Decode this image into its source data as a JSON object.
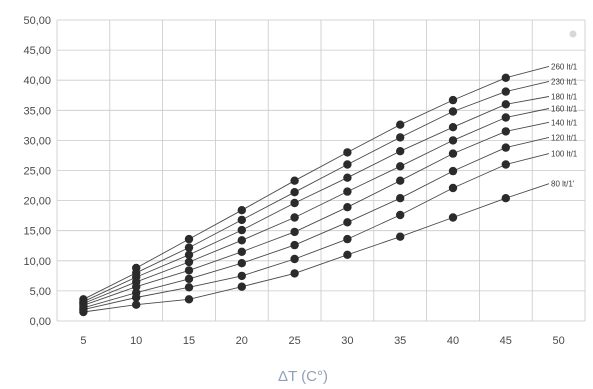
{
  "chart_data": {
    "type": "line",
    "xlabel": "ΔT (C°)",
    "ylabel": "",
    "x": [
      5,
      10,
      15,
      20,
      25,
      30,
      35,
      40,
      45
    ],
    "xlim": [
      2.5,
      52.5
    ],
    "ylim": [
      0,
      50
    ],
    "x_ticks": [
      "5",
      "10",
      "15",
      "20",
      "25",
      "30",
      "35",
      "40",
      "45",
      "50"
    ],
    "y_ticks": [
      "0,00",
      "5,00",
      "10,00",
      "15,00",
      "20,00",
      "25,00",
      "30,00",
      "35,00",
      "40,00",
      "45,00",
      "50,00"
    ],
    "grid": true,
    "legend": "inline-right",
    "series": [
      {
        "name": "260 lt/1",
        "values": [
          null,
          8.8,
          13.6,
          18.4,
          23.3,
          28.0,
          32.6,
          36.7,
          40.4
        ],
        "label_y": 42.3
      },
      {
        "name": "230 lt/1",
        "values": [
          3.6,
          8.0,
          12.2,
          16.8,
          21.4,
          26.0,
          30.5,
          34.8,
          38.1
        ],
        "label_y": 39.8
      },
      {
        "name": "180 lt/1",
        "values": [
          3.2,
          7.3,
          11.0,
          15.1,
          19.6,
          23.8,
          28.2,
          32.2,
          36.0
        ],
        "label_y": 37.3
      },
      {
        "name": "160 lt/1",
        "values": [
          2.9,
          6.5,
          9.8,
          13.4,
          17.2,
          21.5,
          25.7,
          30.0,
          33.8
        ],
        "label_y": 35.3
      },
      {
        "name": "140 lt/1",
        "values": [
          2.6,
          5.7,
          8.4,
          11.5,
          14.8,
          18.9,
          23.3,
          27.8,
          31.5
        ],
        "label_y": 33.0
      },
      {
        "name": "120 lt/1",
        "values": [
          2.2,
          4.7,
          7.0,
          9.6,
          12.6,
          16.4,
          20.4,
          24.9,
          28.8
        ],
        "label_y": 30.5
      },
      {
        "name": "100 lt/1",
        "values": [
          1.9,
          3.9,
          5.6,
          7.5,
          10.3,
          13.6,
          17.6,
          22.1,
          26.0
        ],
        "label_y": 27.8
      },
      {
        "name": "80 lt/1'",
        "values": [
          1.5,
          2.7,
          3.6,
          5.7,
          7.9,
          11.0,
          14.0,
          17.2,
          20.4
        ],
        "label_y": 22.8
      }
    ]
  }
}
